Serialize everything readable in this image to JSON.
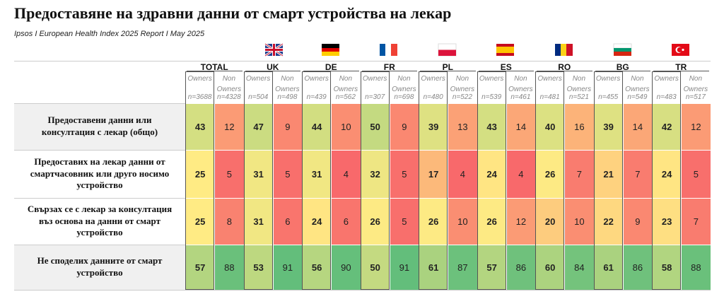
{
  "header": {
    "title": "Предоставяне на здравни данни от смарт устройства на лекар",
    "subtitle": "Ipsos I European Health Index 2025 Report I May 2025"
  },
  "table": {
    "subcolumns": [
      "Owners",
      "Non Owners"
    ],
    "columns": [
      {
        "name": "TOTAL",
        "n": [
          "n=3688",
          "n=4328"
        ]
      },
      {
        "name": "UK",
        "n": [
          "n=504",
          "n=498"
        ]
      },
      {
        "name": "DE",
        "n": [
          "n=439",
          "n=562"
        ]
      },
      {
        "name": "FR",
        "n": [
          "n=307",
          "n=698"
        ]
      },
      {
        "name": "PL",
        "n": [
          "n=480",
          "n=522"
        ]
      },
      {
        "name": "ES",
        "n": [
          "n=539",
          "n=461"
        ]
      },
      {
        "name": "RO",
        "n": [
          "n=481",
          "n=521"
        ]
      },
      {
        "name": "BG",
        "n": [
          "n=455",
          "n=549"
        ]
      },
      {
        "name": "TR",
        "n": [
          "n=483",
          "n=517"
        ]
      }
    ],
    "rows": [
      {
        "label": "Предоставени данни или консултация с лекар (общо)",
        "values": [
          43,
          12,
          47,
          9,
          44,
          10,
          50,
          9,
          39,
          13,
          43,
          14,
          40,
          16,
          39,
          14,
          42,
          12
        ]
      },
      {
        "label": "Предоставих на лекар данни от смартчасовник или друго носимо устройство",
        "values": [
          25,
          5,
          31,
          5,
          31,
          4,
          32,
          5,
          17,
          4,
          24,
          4,
          26,
          7,
          21,
          7,
          24,
          5
        ]
      },
      {
        "label": "Свързах се с лекар за консултация въз основа на данни от смарт устройство",
        "values": [
          25,
          8,
          31,
          6,
          24,
          6,
          26,
          5,
          26,
          10,
          26,
          12,
          20,
          10,
          22,
          9,
          23,
          7
        ]
      },
      {
        "label": "Не споделих данните от смарт устройство",
        "values": [
          57,
          88,
          53,
          91,
          56,
          90,
          50,
          91,
          61,
          87,
          57,
          86,
          60,
          84,
          61,
          86,
          58,
          88
        ]
      }
    ]
  }
}
